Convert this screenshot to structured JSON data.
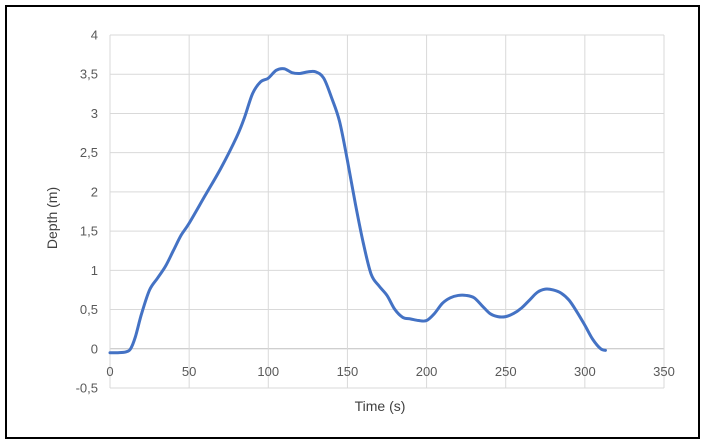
{
  "chart_data": {
    "type": "line",
    "title": "",
    "xlabel": "Time (s)",
    "ylabel": "Depth (m)",
    "xlim": [
      0,
      350
    ],
    "ylim": [
      -0.5,
      4
    ],
    "x_ticks": [
      0,
      50,
      100,
      150,
      200,
      250,
      300,
      350
    ],
    "x_tick_labels": [
      "0",
      "50",
      "100",
      "150",
      "200",
      "250",
      "300",
      "350"
    ],
    "y_ticks": [
      -0.5,
      0,
      0.5,
      1,
      1.5,
      2,
      2.5,
      3,
      3.5,
      4
    ],
    "y_tick_labels": [
      "-0,5",
      "0",
      "0,5",
      "1",
      "1,5",
      "2",
      "2,5",
      "3",
      "3,5",
      "4"
    ],
    "grid": "vertical and horizontal major gridlines",
    "legend": "none",
    "series": [
      {
        "color": "#4472c4",
        "x": [
          0,
          5,
          10,
          13,
          16,
          20,
          25,
          30,
          35,
          40,
          45,
          50,
          60,
          70,
          80,
          85,
          90,
          95,
          100,
          105,
          110,
          115,
          120,
          125,
          130,
          135,
          140,
          145,
          150,
          155,
          160,
          165,
          170,
          175,
          180,
          185,
          190,
          195,
          200,
          205,
          210,
          215,
          220,
          225,
          230,
          235,
          240,
          245,
          250,
          255,
          260,
          265,
          270,
          275,
          280,
          285,
          290,
          295,
          300,
          305,
          310,
          313
        ],
        "y": [
          -0.05,
          -0.05,
          -0.04,
          0,
          0.15,
          0.45,
          0.75,
          0.9,
          1.05,
          1.25,
          1.45,
          1.6,
          1.95,
          2.3,
          2.7,
          2.95,
          3.25,
          3.4,
          3.45,
          3.55,
          3.57,
          3.52,
          3.51,
          3.53,
          3.53,
          3.45,
          3.2,
          2.9,
          2.4,
          1.85,
          1.35,
          0.95,
          0.8,
          0.68,
          0.5,
          0.4,
          0.38,
          0.36,
          0.36,
          0.45,
          0.58,
          0.65,
          0.68,
          0.68,
          0.65,
          0.55,
          0.45,
          0.41,
          0.41,
          0.45,
          0.52,
          0.62,
          0.72,
          0.76,
          0.75,
          0.71,
          0.62,
          0.47,
          0.3,
          0.12,
          0.0,
          -0.02
        ]
      }
    ]
  }
}
